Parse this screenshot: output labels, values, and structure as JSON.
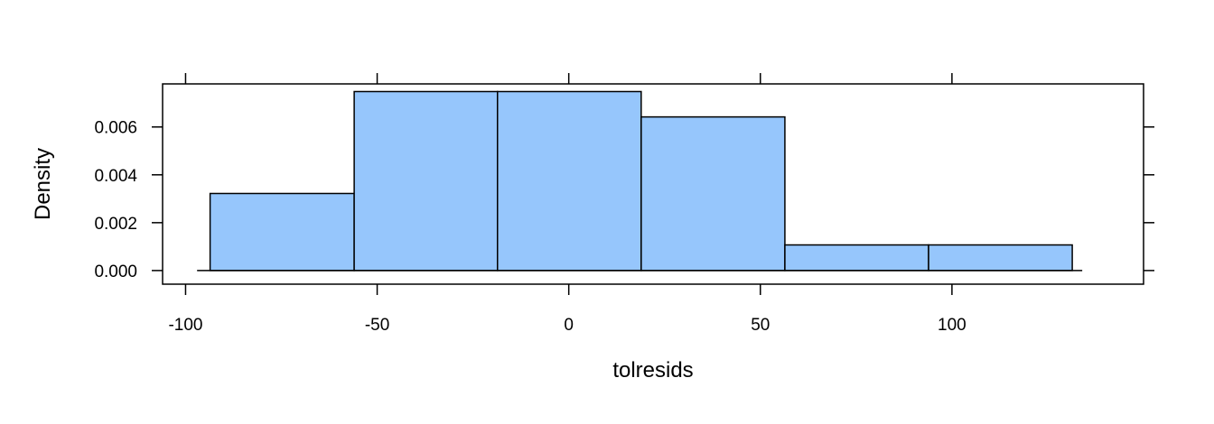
{
  "chart_data": {
    "type": "bar",
    "subtype": "histogram",
    "title": "",
    "xlabel": "tolresids",
    "ylabel": "Density",
    "xlim": [
      -106,
      150
    ],
    "ylim": [
      -0.00057,
      0.0078
    ],
    "x_ticks": [
      -100,
      -50,
      0,
      50,
      100
    ],
    "x_tick_labels": [
      "-100",
      "-50",
      "0",
      "50",
      "100"
    ],
    "y_ticks": [
      0,
      0.002,
      0.004,
      0.006
    ],
    "y_tick_labels": [
      "0.000",
      "0.002",
      "0.004",
      "0.006"
    ],
    "bins": [
      {
        "x0": -93.6,
        "x1": -56.0,
        "density": 0.00322
      },
      {
        "x0": -56.0,
        "x1": -18.6,
        "density": 0.00748
      },
      {
        "x0": -18.6,
        "x1": 18.9,
        "density": 0.00748
      },
      {
        "x0": 18.9,
        "x1": 56.4,
        "density": 0.00642
      },
      {
        "x0": 56.4,
        "x1": 93.9,
        "density": 0.00107
      },
      {
        "x0": 93.9,
        "x1": 131.4,
        "density": 0.00107
      }
    ],
    "baseline_range": [
      -97,
      134
    ],
    "bar_color": "#96C6FC",
    "grid": false,
    "legend": "none"
  }
}
